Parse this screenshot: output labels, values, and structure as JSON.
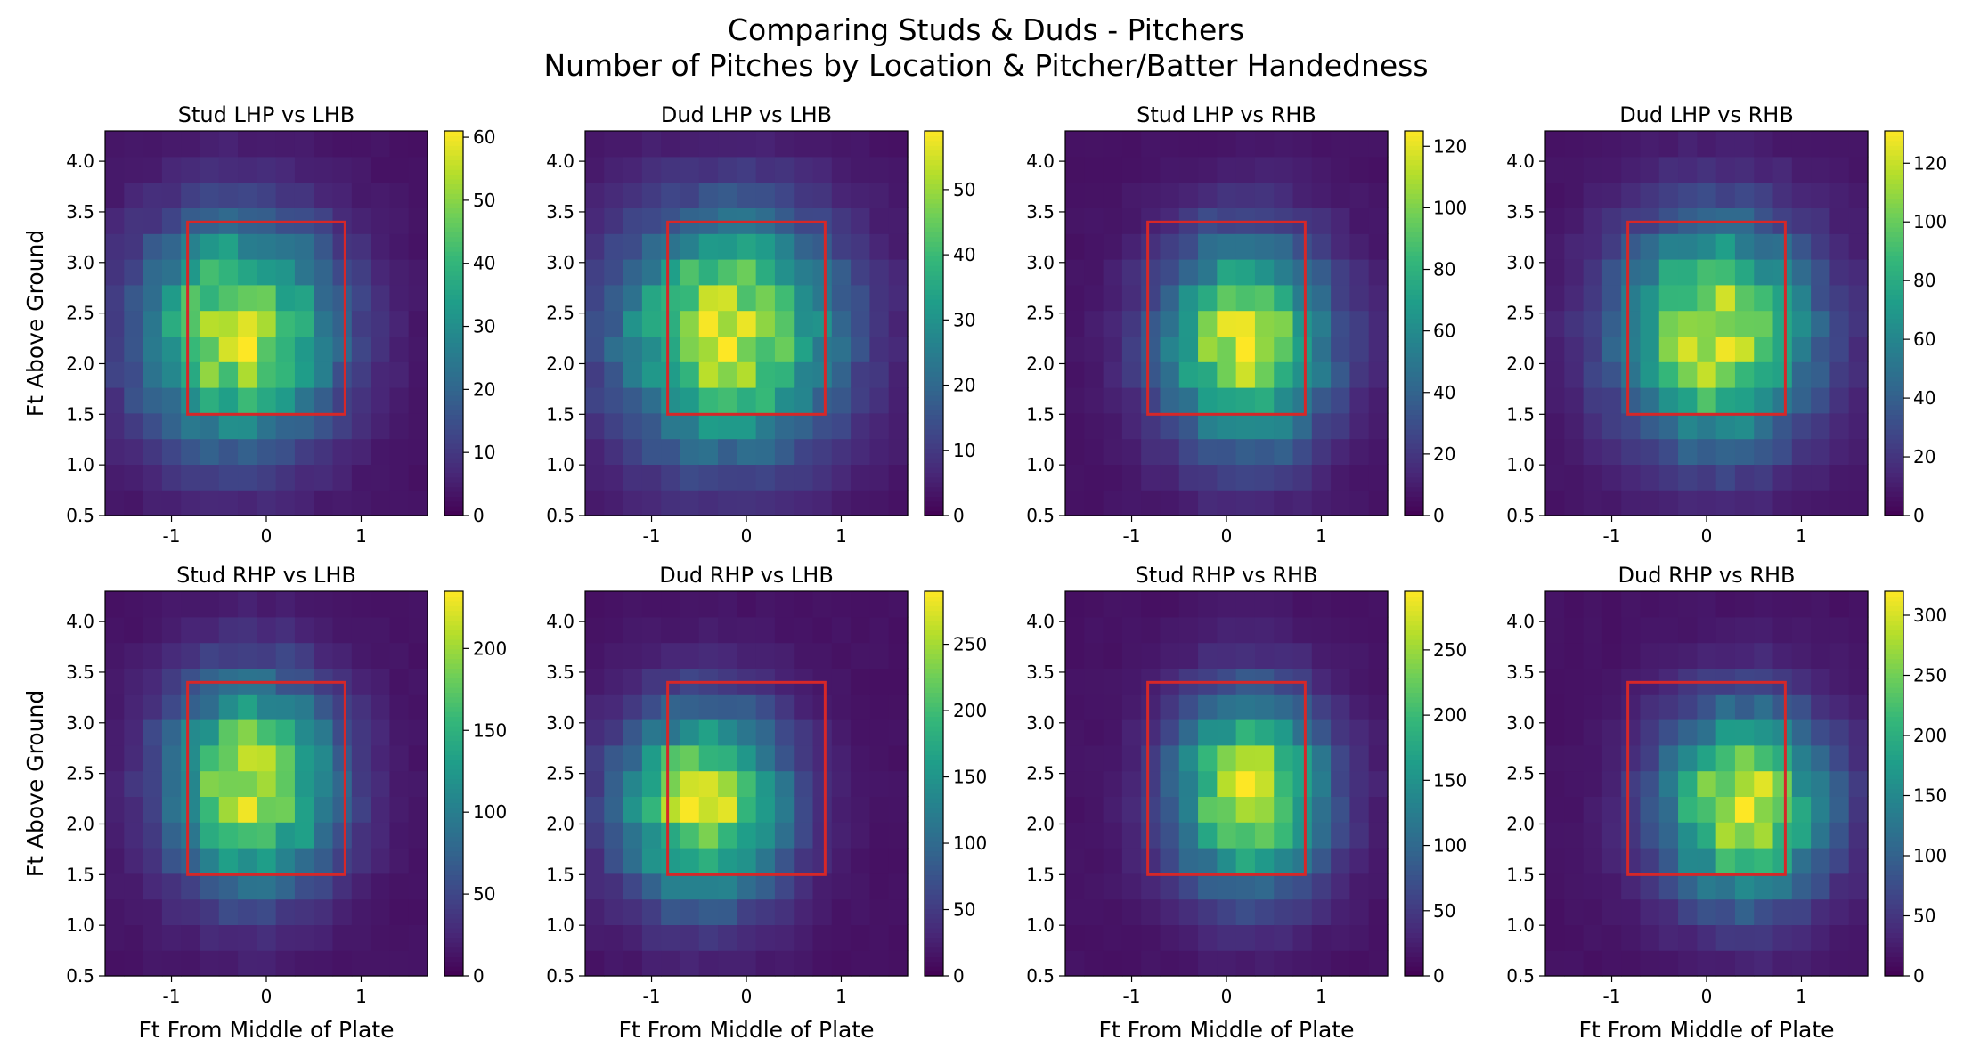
{
  "figure": {
    "title_line1": "Comparing Studs & Duds - Pitchers",
    "title_line2": "Number of Pitches by Location & Pitcher/Batter Handedness"
  },
  "colors": {
    "strike_zone": "#d62728",
    "colormap": "viridis",
    "colormap_stops": [
      "#440154",
      "#482878",
      "#3e4989",
      "#31688e",
      "#26828e",
      "#1f9e89",
      "#35b779",
      "#6ece58",
      "#b5de2b",
      "#fde725"
    ]
  },
  "chart_data": [
    {
      "type": "heatmap",
      "title": "Stud LHP vs LHB",
      "xlabel": "",
      "ylabel": "Ft Above Ground",
      "xlim": [
        -1.7,
        1.7
      ],
      "ylim": [
        0.5,
        4.3
      ],
      "xticks": [
        -1,
        0,
        1
      ],
      "yticks": [
        0.5,
        1.0,
        1.5,
        2.0,
        2.5,
        3.0,
        3.5,
        4.0
      ],
      "colorbar": {
        "min": 0,
        "max": 61,
        "ticks": [
          0,
          10,
          20,
          30,
          40,
          50,
          60
        ]
      },
      "strike_zone": {
        "x": [
          -0.83,
          0.83
        ],
        "y": [
          1.5,
          3.4
        ]
      },
      "bins": {
        "nx": 17,
        "ny": 15
      },
      "peak": {
        "x": -0.3,
        "y": 2.3
      },
      "spread": {
        "x": 0.7,
        "y": 0.75
      }
    },
    {
      "type": "heatmap",
      "title": "Dud LHP vs LHB",
      "xlabel": "",
      "ylabel": "",
      "xlim": [
        -1.7,
        1.7
      ],
      "ylim": [
        0.5,
        4.3
      ],
      "xticks": [
        -1,
        0,
        1
      ],
      "yticks": [
        0.5,
        1.0,
        1.5,
        2.0,
        2.5,
        3.0,
        3.5,
        4.0
      ],
      "colorbar": {
        "min": 0,
        "max": 59,
        "ticks": [
          0,
          10,
          20,
          30,
          40,
          50
        ]
      },
      "strike_zone": {
        "x": [
          -0.83,
          0.83
        ],
        "y": [
          1.5,
          3.4
        ]
      },
      "bins": {
        "nx": 17,
        "ny": 15
      },
      "peak": {
        "x": -0.2,
        "y": 2.3
      },
      "spread": {
        "x": 0.8,
        "y": 0.8
      }
    },
    {
      "type": "heatmap",
      "title": "Stud LHP vs RHB",
      "xlabel": "",
      "ylabel": "",
      "xlim": [
        -1.7,
        1.7
      ],
      "ylim": [
        0.5,
        4.3
      ],
      "xticks": [
        -1,
        0,
        1
      ],
      "yticks": [
        0.5,
        1.0,
        1.5,
        2.0,
        2.5,
        3.0,
        3.5,
        4.0
      ],
      "colorbar": {
        "min": 0,
        "max": 125,
        "ticks": [
          0,
          20,
          40,
          60,
          80,
          100,
          120
        ]
      },
      "strike_zone": {
        "x": [
          -0.83,
          0.83
        ],
        "y": [
          1.5,
          3.4
        ]
      },
      "bins": {
        "nx": 17,
        "ny": 15
      },
      "peak": {
        "x": 0.2,
        "y": 2.2
      },
      "spread": {
        "x": 0.6,
        "y": 0.7
      }
    },
    {
      "type": "heatmap",
      "title": "Dud LHP vs RHB",
      "xlabel": "",
      "ylabel": "",
      "xlim": [
        -1.7,
        1.7
      ],
      "ylim": [
        0.5,
        4.3
      ],
      "xticks": [
        -1,
        0,
        1
      ],
      "yticks": [
        0.5,
        1.0,
        1.5,
        2.0,
        2.5,
        3.0,
        3.5,
        4.0
      ],
      "colorbar": {
        "min": 0,
        "max": 131,
        "ticks": [
          0,
          20,
          40,
          60,
          80,
          100,
          120
        ]
      },
      "strike_zone": {
        "x": [
          -0.83,
          0.83
        ],
        "y": [
          1.5,
          3.4
        ]
      },
      "bins": {
        "nx": 17,
        "ny": 15
      },
      "peak": {
        "x": 0.1,
        "y": 2.3
      },
      "spread": {
        "x": 0.7,
        "y": 0.75
      }
    },
    {
      "type": "heatmap",
      "title": "Stud RHP vs LHB",
      "xlabel": "Ft From Middle of Plate",
      "ylabel": "Ft Above Ground",
      "xlim": [
        -1.7,
        1.7
      ],
      "ylim": [
        0.5,
        4.3
      ],
      "xticks": [
        -1,
        0,
        1
      ],
      "yticks": [
        0.5,
        1.0,
        1.5,
        2.0,
        2.5,
        3.0,
        3.5,
        4.0
      ],
      "colorbar": {
        "min": 0,
        "max": 235,
        "ticks": [
          0,
          50,
          100,
          150,
          200
        ]
      },
      "strike_zone": {
        "x": [
          -0.83,
          0.83
        ],
        "y": [
          1.5,
          3.4
        ]
      },
      "bins": {
        "nx": 17,
        "ny": 15
      },
      "peak": {
        "x": -0.15,
        "y": 2.4
      },
      "spread": {
        "x": 0.6,
        "y": 0.7
      }
    },
    {
      "type": "heatmap",
      "title": "Dud RHP vs LHB",
      "xlabel": "Ft From Middle of Plate",
      "ylabel": "",
      "xlim": [
        -1.7,
        1.7
      ],
      "ylim": [
        0.5,
        4.3
      ],
      "xticks": [
        -1,
        0,
        1
      ],
      "yticks": [
        0.5,
        1.0,
        1.5,
        2.0,
        2.5,
        3.0,
        3.5,
        4.0
      ],
      "colorbar": {
        "min": 0,
        "max": 290,
        "ticks": [
          0,
          50,
          100,
          150,
          200,
          250
        ]
      },
      "strike_zone": {
        "x": [
          -0.83,
          0.83
        ],
        "y": [
          1.5,
          3.4
        ]
      },
      "bins": {
        "nx": 17,
        "ny": 15
      },
      "peak": {
        "x": -0.45,
        "y": 2.2
      },
      "spread": {
        "x": 0.6,
        "y": 0.65
      }
    },
    {
      "type": "heatmap",
      "title": "Stud RHP vs RHB",
      "xlabel": "Ft From Middle of Plate",
      "ylabel": "",
      "xlim": [
        -1.7,
        1.7
      ],
      "ylim": [
        0.5,
        4.3
      ],
      "xticks": [
        -1,
        0,
        1
      ],
      "yticks": [
        0.5,
        1.0,
        1.5,
        2.0,
        2.5,
        3.0,
        3.5,
        4.0
      ],
      "colorbar": {
        "min": 0,
        "max": 295,
        "ticks": [
          0,
          50,
          100,
          150,
          200,
          250
        ]
      },
      "strike_zone": {
        "x": [
          -0.83,
          0.83
        ],
        "y": [
          1.5,
          3.4
        ]
      },
      "bins": {
        "nx": 17,
        "ny": 15
      },
      "peak": {
        "x": 0.25,
        "y": 2.3
      },
      "spread": {
        "x": 0.55,
        "y": 0.65
      }
    },
    {
      "type": "heatmap",
      "title": "Dud RHP vs RHB",
      "xlabel": "Ft From Middle of Plate",
      "ylabel": "",
      "xlim": [
        -1.7,
        1.7
      ],
      "ylim": [
        0.5,
        4.3
      ],
      "xticks": [
        -1,
        0,
        1
      ],
      "yticks": [
        0.5,
        1.0,
        1.5,
        2.0,
        2.5,
        3.0,
        3.5,
        4.0
      ],
      "colorbar": {
        "min": 0,
        "max": 320,
        "ticks": [
          0,
          50,
          100,
          150,
          200,
          250,
          300
        ]
      },
      "strike_zone": {
        "x": [
          -0.83,
          0.83
        ],
        "y": [
          1.5,
          3.4
        ]
      },
      "bins": {
        "nx": 17,
        "ny": 15
      },
      "peak": {
        "x": 0.4,
        "y": 2.2
      },
      "spread": {
        "x": 0.6,
        "y": 0.65
      }
    }
  ]
}
